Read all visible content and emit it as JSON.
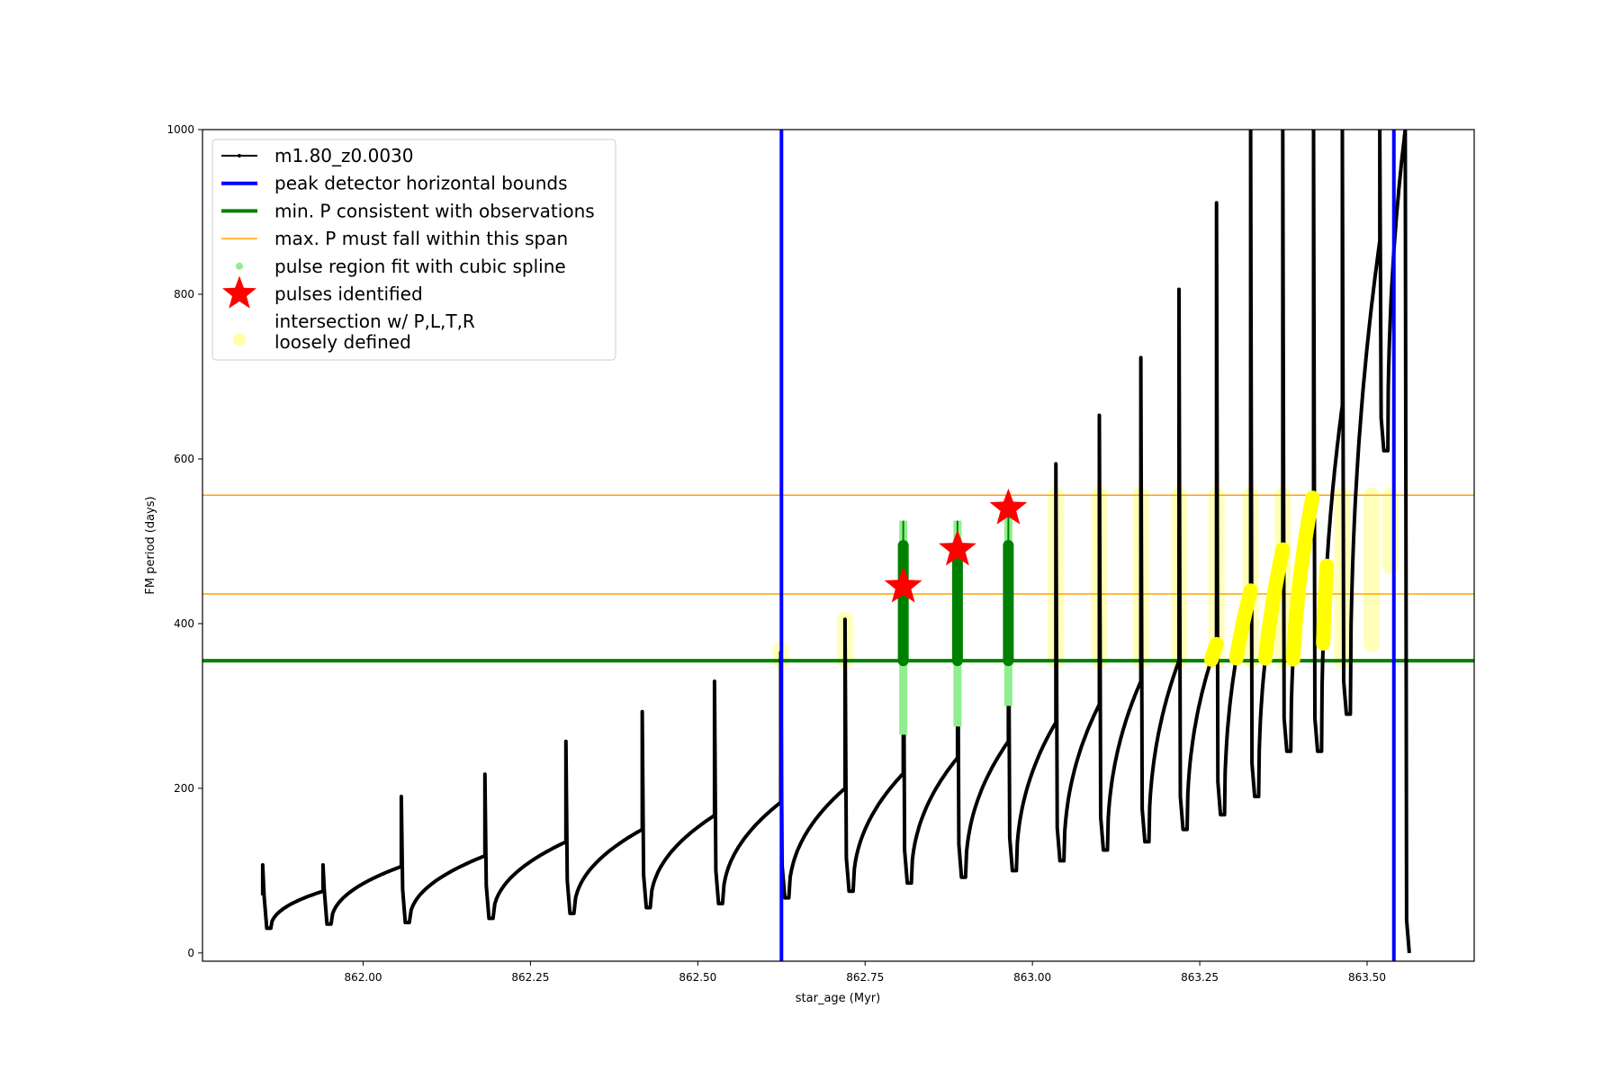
{
  "chart_data": {
    "type": "line",
    "xlabel": "star_age (Myr)",
    "ylabel": "FM period (days)",
    "xlim": [
      861.76,
      863.66
    ],
    "ylim": [
      -10,
      1000
    ],
    "xticks": [
      862.0,
      862.25,
      862.5,
      862.75,
      863.0,
      863.25,
      863.5
    ],
    "xtick_labels": [
      "862.00",
      "862.25",
      "862.50",
      "862.75",
      "863.00",
      "863.25",
      "863.50"
    ],
    "yticks": [
      0,
      200,
      400,
      600,
      800,
      1000
    ],
    "ytick_labels": [
      "0",
      "200",
      "400",
      "600",
      "800",
      "1000"
    ],
    "legend_position": "upper-left",
    "legend": [
      {
        "label": "m1.80_z0.0030",
        "kind": "line-dot",
        "color": "#000000"
      },
      {
        "label": "peak detector horizontal bounds",
        "kind": "thick-line",
        "color": "#0000ff"
      },
      {
        "label": "min. P consistent with observations",
        "kind": "thick-line",
        "color": "#008000"
      },
      {
        "label": "max. P must fall within this span",
        "kind": "thin-line",
        "color": "#ffa500"
      },
      {
        "label": "pulse region fit with cubic spline",
        "kind": "dot",
        "color": "#90ee90"
      },
      {
        "label": "pulses identified",
        "kind": "star",
        "color": "#ff0000"
      },
      {
        "label": "intersection w/ P,L,T,R",
        "label2": "loosely defined",
        "kind": "circle",
        "color": "#ffffaa"
      }
    ],
    "peak_detector_bounds": [
      862.625,
      863.54
    ],
    "min_P": 355,
    "max_P_span": [
      436,
      556
    ],
    "series": {
      "name": "m1.80_z0.0030",
      "start": {
        "t": 861.85,
        "p": 70
      },
      "pulses": [
        {
          "t": 861.85,
          "pre": 70,
          "peak": 107,
          "min": 30
        },
        {
          "t": 861.94,
          "pre": 75,
          "peak": 107,
          "min": 35
        },
        {
          "t": 862.057,
          "pre": 105,
          "peak": 190,
          "min": 37
        },
        {
          "t": 862.182,
          "pre": 118,
          "peak": 217,
          "min": 42
        },
        {
          "t": 862.303,
          "pre": 135,
          "peak": 257,
          "min": 48
        },
        {
          "t": 862.417,
          "pre": 150,
          "peak": 293,
          "min": 55
        },
        {
          "t": 862.525,
          "pre": 167,
          "peak": 330,
          "min": 60
        },
        {
          "t": 862.624,
          "pre": 183,
          "peak": 365,
          "min": 67
        },
        {
          "t": 862.72,
          "pre": 200,
          "peak": 405,
          "min": 75
        },
        {
          "t": 862.807,
          "pre": 218,
          "peak": 495,
          "min": 85
        },
        {
          "t": 862.888,
          "pre": 237,
          "peak": 495,
          "min": 92
        },
        {
          "t": 862.964,
          "pre": 257,
          "peak": 495,
          "min": 100
        },
        {
          "t": 863.035,
          "pre": 280,
          "peak": 594,
          "min": 112
        },
        {
          "t": 863.1,
          "pre": 302,
          "peak": 653,
          "min": 125
        },
        {
          "t": 863.162,
          "pre": 330,
          "peak": 723,
          "min": 135
        },
        {
          "t": 863.219,
          "pre": 355,
          "peak": 806,
          "min": 150
        },
        {
          "t": 863.275,
          "pre": 375,
          "peak": 911,
          "min": 168
        },
        {
          "t": 863.326,
          "pre": 440,
          "peak": 1000,
          "min": 190
        },
        {
          "t": 863.374,
          "pre": 490,
          "peak": 1000,
          "min": 245
        },
        {
          "t": 863.42,
          "pre": 560,
          "peak": 1000,
          "min": 245
        },
        {
          "t": 863.463,
          "pre": 665,
          "peak": 1000,
          "min": 290
        },
        {
          "t": 863.519,
          "pre": 865,
          "peak": 1000,
          "min": 610
        },
        {
          "t": 863.557,
          "pre": 1000,
          "peak": 1000,
          "min": 0
        }
      ]
    },
    "spline_regions": [
      {
        "t": 862.807,
        "low": 265,
        "high": 525,
        "fit_low": 355,
        "fit_high": 495
      },
      {
        "t": 862.888,
        "low": 275,
        "high": 525,
        "fit_low": 355,
        "fit_high": 495
      },
      {
        "t": 862.964,
        "low": 300,
        "high": 540,
        "fit_low": 355,
        "fit_high": 495
      }
    ],
    "pulses_identified": [
      {
        "t": 862.807,
        "p": 445
      },
      {
        "t": 862.888,
        "p": 490
      },
      {
        "t": 862.964,
        "p": 540
      }
    ],
    "loose_intersections": [
      {
        "t": 862.624,
        "low": 355,
        "high": 368
      },
      {
        "t": 862.72,
        "low": 355,
        "high": 405
      },
      {
        "t": 863.035,
        "low": 355,
        "high": 556
      },
      {
        "t": 863.1,
        "low": 355,
        "high": 556
      },
      {
        "t": 863.162,
        "low": 355,
        "high": 556
      },
      {
        "t": 863.219,
        "low": 355,
        "high": 556
      },
      {
        "t": 863.275,
        "low": 355,
        "high": 556
      },
      {
        "t": 863.326,
        "low": 355,
        "high": 556
      },
      {
        "t": 863.374,
        "low": 355,
        "high": 556
      },
      {
        "t": 863.463,
        "low": 355,
        "high": 556
      },
      {
        "t": 863.507,
        "low": 375,
        "high": 556
      },
      {
        "t": 863.535,
        "low": 470,
        "high": 556
      }
    ]
  }
}
